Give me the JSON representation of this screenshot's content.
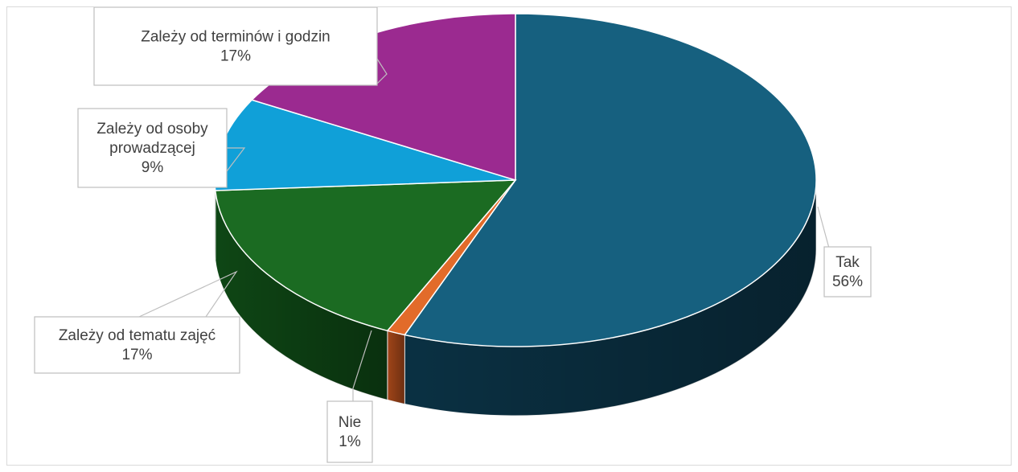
{
  "chart_data": {
    "type": "pie",
    "title": "",
    "slices": [
      {
        "label": "Tak",
        "value": 56,
        "value_label": "56%",
        "color": "#16607f",
        "side": "#0b3346"
      },
      {
        "label": "Nie",
        "value": 1,
        "value_label": "1%",
        "color": "#e26b2a",
        "side": "#a8481a"
      },
      {
        "label": "Zależy od tematu zajęć",
        "value": 17,
        "value_label": "17%",
        "color": "#1b6b22",
        "side": "#0f4a16"
      },
      {
        "label": "Zależy od osoby prowadzącej",
        "value": 9,
        "value_label": "9%",
        "color": "#10a0d8",
        "side": "#0a6f98"
      },
      {
        "label": "Zależy od terminów i godzin",
        "value": 17,
        "value_label": "17%",
        "color": "#9b2a90",
        "side": "#6b1c63"
      }
    ]
  }
}
